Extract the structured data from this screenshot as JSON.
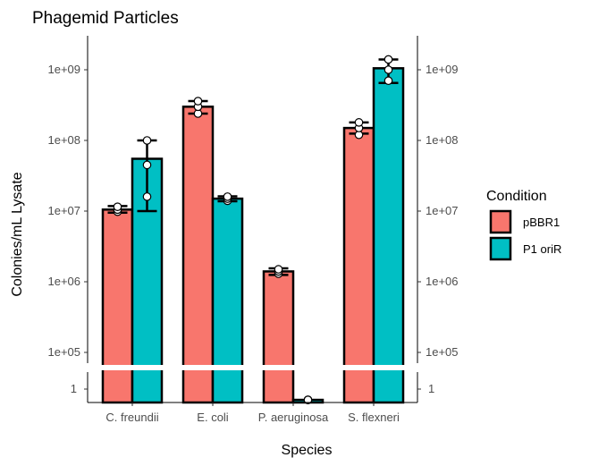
{
  "chart_data": {
    "type": "bar",
    "title": "Phagemid Particles",
    "xlabel": "Species",
    "ylabel": "Colonies/mL Lysate",
    "y_scale": "log10",
    "ylim_main": [
      50000,
      2000000000
    ],
    "y_break": "axis break between 1 and 1e+05",
    "yticks_main": [
      "1e+05",
      "1e+06",
      "1e+07",
      "1e+08",
      "1e+09"
    ],
    "yticks_low": [
      "1"
    ],
    "grid": false,
    "legend_position": "right",
    "categories": [
      "C. freundii",
      "E. coli",
      "P. aeruginosa",
      "S. flexneri"
    ],
    "series": [
      {
        "name": "pBBR1",
        "color": "#F8766D",
        "values": [
          10500000,
          300000000,
          1400000,
          150000000
        ],
        "error_low": [
          9500000,
          240000000,
          1250000,
          125000000
        ],
        "error_high": [
          11800000,
          360000000,
          1550000,
          180000000
        ],
        "points": [
          [
            9800000,
            10500000,
            11500000
          ],
          [
            240000000,
            300000000,
            360000000
          ],
          [
            1300000,
            1400000,
            1500000
          ],
          [
            120000000,
            150000000,
            180000000
          ]
        ]
      },
      {
        "name": "P1 oriR",
        "color": "#00BFC4",
        "values": [
          55000000,
          15000000,
          0.5,
          1050000000
        ],
        "error_low": [
          10000000,
          13800000,
          null,
          650000000
        ],
        "error_high": [
          100000000,
          16200000,
          null,
          1400000000
        ],
        "points": [
          [
            16000000,
            45000000,
            100000000
          ],
          [
            14000000,
            15000000,
            16000000
          ],
          [
            0.5,
            0.5,
            0.5
          ],
          [
            700000000,
            1000000000,
            1400000000
          ]
        ]
      }
    ]
  },
  "legend": {
    "title": "Condition",
    "items": [
      {
        "label": "pBBR1",
        "color": "#F8766D"
      },
      {
        "label": "P1 oriR",
        "color": "#00BFC4"
      }
    ]
  }
}
